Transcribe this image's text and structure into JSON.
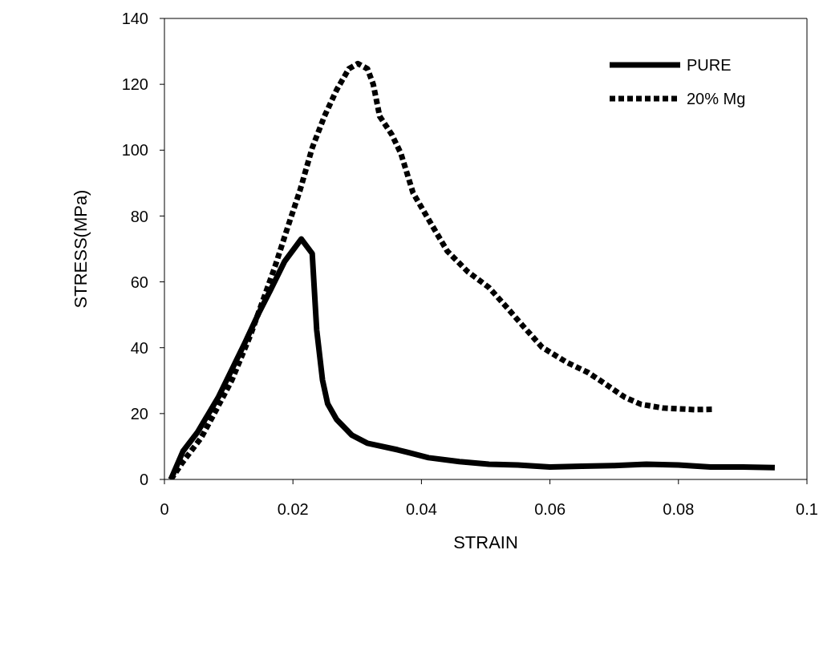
{
  "chart_data": {
    "type": "line",
    "xlabel": "STRAIN",
    "ylabel": "STRESS(MPa)",
    "xlim": [
      0,
      0.1
    ],
    "xticks": [
      0,
      0.02,
      0.04,
      0.06,
      0.08,
      0.1
    ],
    "ylim": [
      0,
      140
    ],
    "yticks": [
      0,
      20,
      40,
      60,
      80,
      100,
      120,
      140
    ],
    "legend": "top right",
    "marker": "none",
    "series": [
      {
        "name": "PURE",
        "color": "#000000",
        "line_style": "solid",
        "x": [
          0.001,
          0.0029,
          0.0051,
          0.0084,
          0.0125,
          0.0148,
          0.0165,
          0.0187,
          0.0213,
          0.023,
          0.0237,
          0.0246,
          0.0254,
          0.0268,
          0.0292,
          0.0316,
          0.0363,
          0.0411,
          0.0459,
          0.0505,
          0.055,
          0.06,
          0.065,
          0.07,
          0.075,
          0.08,
          0.085,
          0.09,
          0.095
        ],
        "values": [
          0,
          8.6,
          14.2,
          25,
          41.4,
          51,
          57.5,
          66.2,
          73,
          68.6,
          45.4,
          30.2,
          23,
          18.2,
          13.4,
          11,
          9,
          6.6,
          5.4,
          4.6,
          4.4,
          3.8,
          4,
          4.2,
          4.6,
          4.4,
          3.8,
          3.8,
          3.6
        ]
      },
      {
        "name": "20% Mg",
        "color": "#000000",
        "line_style": "dotted",
        "x": [
          0.001,
          0.0029,
          0.0057,
          0.0077,
          0.0105,
          0.0134,
          0.0153,
          0.0172,
          0.0192,
          0.0211,
          0.023,
          0.0249,
          0.0268,
          0.0287,
          0.0301,
          0.0316,
          0.0325,
          0.0335,
          0.0354,
          0.0368,
          0.0387,
          0.0408,
          0.044,
          0.0472,
          0.0505,
          0.0534,
          0.0559,
          0.0588,
          0.0626,
          0.0659,
          0.0684,
          0.0717,
          0.0742,
          0.0775,
          0.0825,
          0.0852
        ],
        "values": [
          0,
          5.4,
          12.6,
          19.8,
          30.2,
          43.9,
          54.2,
          64.6,
          76.7,
          87.8,
          100.7,
          110.3,
          118.3,
          124.7,
          126.3,
          124.7,
          120,
          110.3,
          104.7,
          99,
          87,
          80,
          69.4,
          63.1,
          58.3,
          52,
          46.4,
          40.1,
          35.6,
          32.5,
          29.3,
          24.9,
          22.8,
          21.7,
          21.2,
          21.3
        ]
      }
    ]
  }
}
